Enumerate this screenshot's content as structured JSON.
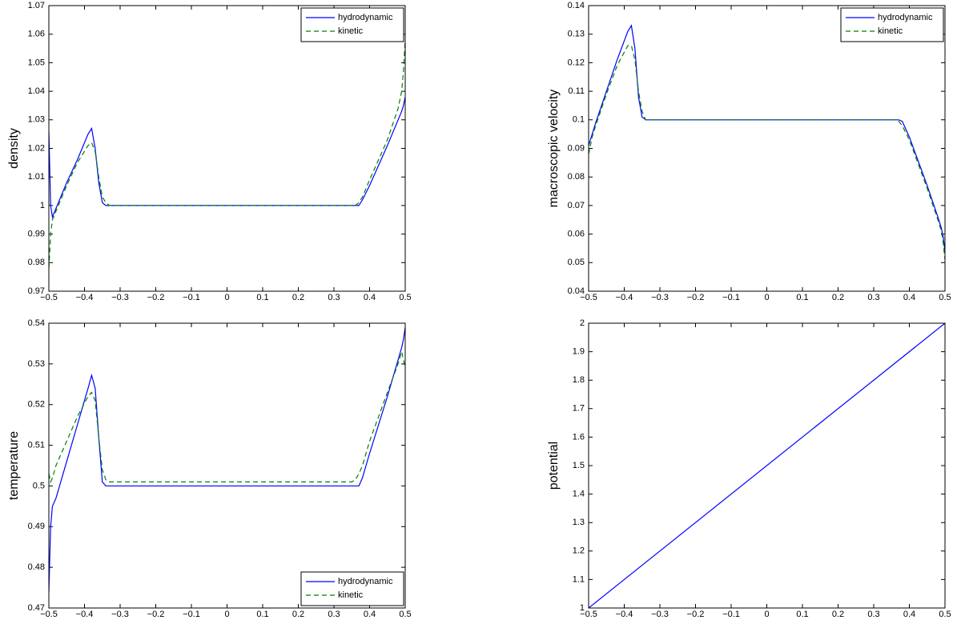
{
  "chart_data": [
    {
      "type": "line",
      "ylabel": "density",
      "legend": "upper right",
      "grid": false,
      "x": [
        -0.5,
        -0.495,
        -0.49,
        -0.48,
        -0.45,
        -0.42,
        -0.39,
        -0.38,
        -0.37,
        -0.36,
        -0.35,
        -0.34,
        -0.33,
        -0.3,
        0,
        0.3,
        0.35,
        0.36,
        0.37,
        0.38,
        0.4,
        0.45,
        0.48,
        0.49,
        0.495,
        0.5
      ],
      "series": [
        {
          "name": "hydrodynamic",
          "color": "#0000ff",
          "line_style": "solid",
          "values": [
            1.026,
            1.0,
            0.996,
            0.999,
            1.008,
            1.016,
            1.025,
            1.027,
            1.02,
            1.008,
            1.001,
            1.0,
            1.0,
            1.0,
            1.0,
            1.0,
            1.0,
            1.0,
            1.0,
            1.002,
            1.007,
            1.021,
            1.03,
            1.033,
            1.035,
            1.038
          ]
        },
        {
          "name": "kinetic",
          "color": "#008000",
          "line_style": "dashed",
          "values": [
            0.978,
            0.99,
            0.995,
            0.998,
            1.007,
            1.015,
            1.021,
            1.022,
            1.019,
            1.01,
            1.003,
            1.001,
            1.0,
            1.0,
            1.0,
            1.0,
            1.0,
            1.0,
            1.001,
            1.003,
            1.009,
            1.023,
            1.034,
            1.04,
            1.047,
            1.058
          ]
        }
      ],
      "xlim": [
        -0.5,
        0.5
      ],
      "xticks": [
        {
          "value": -0.5,
          "label": "−0.5"
        },
        {
          "value": -0.4,
          "label": "−0.4"
        },
        {
          "value": -0.3,
          "label": "−0.3"
        },
        {
          "value": -0.2,
          "label": "−0.2"
        },
        {
          "value": -0.1,
          "label": "−0.1"
        },
        0,
        0.1,
        0.2,
        0.3,
        0.4,
        0.5
      ],
      "ylim": [
        0.97,
        1.07
      ],
      "yticks": [
        0.97,
        0.98,
        0.99,
        1,
        1.01,
        1.02,
        1.03,
        1.04,
        1.05,
        1.06,
        1.07
      ]
    },
    {
      "type": "line",
      "ylabel": "macroscopic velocity",
      "legend": "upper right",
      "grid": false,
      "x": [
        -0.5,
        -0.495,
        -0.49,
        -0.48,
        -0.45,
        -0.42,
        -0.39,
        -0.38,
        -0.37,
        -0.36,
        -0.35,
        -0.34,
        -0.33,
        -0.3,
        0,
        0.3,
        0.35,
        0.36,
        0.37,
        0.38,
        0.4,
        0.45,
        0.48,
        0.49,
        0.495,
        0.5
      ],
      "series": [
        {
          "name": "hydrodynamic",
          "color": "#0000ff",
          "line_style": "solid",
          "values": [
            0.091,
            0.093,
            0.095,
            0.099,
            0.11,
            0.121,
            0.131,
            0.133,
            0.125,
            0.108,
            0.101,
            0.1,
            0.1,
            0.1,
            0.1,
            0.1,
            0.1,
            0.1,
            0.1,
            0.0995,
            0.094,
            0.077,
            0.066,
            0.062,
            0.059,
            0.054
          ]
        },
        {
          "name": "kinetic",
          "color": "#008000",
          "line_style": "dashed",
          "values": [
            0.088,
            0.091,
            0.094,
            0.098,
            0.109,
            0.119,
            0.126,
            0.126,
            0.121,
            0.11,
            0.103,
            0.1,
            0.1,
            0.1,
            0.1,
            0.1,
            0.1,
            0.1,
            0.0995,
            0.098,
            0.093,
            0.076,
            0.065,
            0.061,
            0.057,
            0.051
          ]
        }
      ],
      "xlim": [
        -0.5,
        0.5
      ],
      "xticks": [
        {
          "value": -0.5,
          "label": "−0.5"
        },
        {
          "value": -0.4,
          "label": "−0.4"
        },
        {
          "value": -0.3,
          "label": "−0.3"
        },
        {
          "value": -0.2,
          "label": "−0.2"
        },
        {
          "value": -0.1,
          "label": "−0.1"
        },
        0,
        0.1,
        0.2,
        0.3,
        0.4,
        0.5
      ],
      "ylim": [
        0.04,
        0.14
      ],
      "yticks": [
        0.04,
        0.05,
        0.06,
        0.07,
        0.08,
        0.09,
        0.1,
        0.11,
        0.12,
        0.13,
        0.14
      ]
    },
    {
      "type": "line",
      "ylabel": "temperature",
      "legend": "lower right",
      "grid": false,
      "x": [
        -0.5,
        -0.495,
        -0.49,
        -0.48,
        -0.45,
        -0.42,
        -0.39,
        -0.38,
        -0.37,
        -0.36,
        -0.35,
        -0.34,
        -0.33,
        -0.3,
        0,
        0.3,
        0.35,
        0.36,
        0.37,
        0.38,
        0.4,
        0.45,
        0.48,
        0.49,
        0.495,
        0.5
      ],
      "series": [
        {
          "name": "hydrodynamic",
          "color": "#0000ff",
          "line_style": "solid",
          "values": [
            0.474,
            0.49,
            0.495,
            0.497,
            0.506,
            0.515,
            0.524,
            0.5272,
            0.524,
            0.512,
            0.501,
            0.5,
            0.5,
            0.5,
            0.5,
            0.5,
            0.5,
            0.5,
            0.5,
            0.502,
            0.508,
            0.522,
            0.531,
            0.534,
            0.536,
            0.539
          ]
        },
        {
          "name": "kinetic",
          "color": "#008000",
          "line_style": "dashed",
          "values": [
            0.503,
            0.501,
            0.502,
            0.505,
            0.511,
            0.517,
            0.522,
            0.523,
            0.521,
            0.512,
            0.504,
            0.5015,
            0.501,
            0.501,
            0.501,
            0.501,
            0.501,
            0.5015,
            0.503,
            0.505,
            0.511,
            0.523,
            0.53,
            0.533,
            0.531,
            0.529
          ]
        }
      ],
      "xlim": [
        -0.5,
        0.5
      ],
      "xticks": [
        {
          "value": -0.5,
          "label": "−0.5"
        },
        {
          "value": -0.4,
          "label": "−0.4"
        },
        {
          "value": -0.3,
          "label": "−0.3"
        },
        {
          "value": -0.2,
          "label": "−0.2"
        },
        {
          "value": -0.1,
          "label": "−0.1"
        },
        0,
        0.1,
        0.2,
        0.3,
        0.4,
        0.5
      ],
      "ylim": [
        0.47,
        0.54
      ],
      "yticks": [
        0.47,
        0.48,
        0.49,
        0.5,
        0.51,
        0.52,
        0.53,
        0.54
      ]
    },
    {
      "type": "line",
      "ylabel": "potential",
      "grid": false,
      "x": [
        -0.5,
        0.5
      ],
      "series": [
        {
          "color": "#0000ff",
          "line_style": "solid",
          "values": [
            1,
            2
          ]
        }
      ],
      "xlim": [
        -0.5,
        0.5
      ],
      "xticks": [
        {
          "value": -0.5,
          "label": "−0.5"
        },
        {
          "value": -0.4,
          "label": "−0.4"
        },
        {
          "value": -0.3,
          "label": "−0.3"
        },
        {
          "value": -0.2,
          "label": "−0.2"
        },
        {
          "value": -0.1,
          "label": "−0.1"
        },
        0,
        0.1,
        0.2,
        0.3,
        0.4,
        0.5
      ],
      "ylim": [
        1,
        2
      ],
      "yticks": [
        1,
        1.1,
        1.2,
        1.3,
        1.4,
        1.5,
        1.6,
        1.7,
        1.8,
        1.9,
        2
      ]
    }
  ]
}
